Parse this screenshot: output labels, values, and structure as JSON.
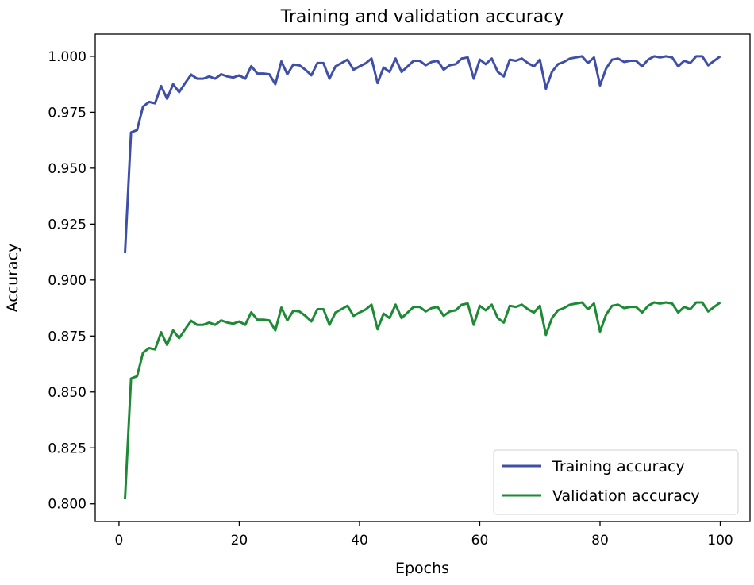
{
  "chart_data": {
    "type": "line",
    "title": "Training and validation accuracy",
    "xlabel": "Epochs",
    "ylabel": "Accuracy",
    "xlim": [
      -3.95,
      104.95
    ],
    "ylim": [
      0.7921,
      1.0099
    ],
    "xticks": [
      0,
      20,
      40,
      60,
      80,
      100
    ],
    "yticks": [
      "0.800",
      "0.825",
      "0.850",
      "0.875",
      "0.900",
      "0.925",
      "0.950",
      "0.975",
      "1.000"
    ],
    "grid": false,
    "legend_position": "lower-right",
    "x_start": 1,
    "series": [
      {
        "name": "Training accuracy",
        "color": "#3f4fa8",
        "values": [
          0.912,
          0.966,
          0.967,
          0.9775,
          0.9796,
          0.979,
          0.9867,
          0.981,
          0.9875,
          0.984,
          0.988,
          0.9918,
          0.99,
          0.99,
          0.991,
          0.99,
          0.992,
          0.991,
          0.9905,
          0.9915,
          0.99,
          0.9956,
          0.9923,
          0.9923,
          0.992,
          0.9875,
          0.9977,
          0.992,
          0.9963,
          0.996,
          0.994,
          0.9915,
          0.997,
          0.997,
          0.99,
          0.9955,
          0.997,
          0.9985,
          0.994,
          0.9955,
          0.9968,
          0.999,
          0.988,
          0.995,
          0.993,
          0.999,
          0.993,
          0.9955,
          0.998,
          0.998,
          0.996,
          0.9975,
          0.998,
          0.994,
          0.996,
          0.9965,
          0.999,
          0.9995,
          0.99,
          0.9985,
          0.9965,
          0.999,
          0.993,
          0.991,
          0.9985,
          0.998,
          0.999,
          0.997,
          0.9955,
          0.9985,
          0.9855,
          0.993,
          0.9965,
          0.9975,
          0.999,
          0.9995,
          1.0,
          0.997,
          0.9995,
          0.987,
          0.9945,
          0.9985,
          0.999,
          0.9975,
          0.998,
          0.998,
          0.9955,
          0.9985,
          1.0,
          0.9995,
          1.0,
          0.9995,
          0.9955,
          0.998,
          0.997,
          1.0,
          1.0,
          0.996,
          0.998,
          1.0
        ]
      },
      {
        "name": "Validation accuracy",
        "color": "#1e8a36",
        "values": [
          0.802,
          0.856,
          0.857,
          0.8675,
          0.8696,
          0.869,
          0.8767,
          0.871,
          0.8775,
          0.874,
          0.878,
          0.8818,
          0.88,
          0.88,
          0.881,
          0.88,
          0.882,
          0.881,
          0.8805,
          0.8815,
          0.88,
          0.8856,
          0.8823,
          0.8823,
          0.882,
          0.8775,
          0.8877,
          0.882,
          0.8863,
          0.886,
          0.884,
          0.8815,
          0.887,
          0.887,
          0.88,
          0.8855,
          0.887,
          0.8885,
          0.884,
          0.8855,
          0.8868,
          0.889,
          0.878,
          0.885,
          0.883,
          0.889,
          0.883,
          0.8855,
          0.888,
          0.888,
          0.886,
          0.8875,
          0.888,
          0.884,
          0.886,
          0.8865,
          0.889,
          0.8895,
          0.88,
          0.8885,
          0.8865,
          0.889,
          0.883,
          0.881,
          0.8885,
          0.888,
          0.889,
          0.887,
          0.8855,
          0.8885,
          0.8755,
          0.883,
          0.8865,
          0.8875,
          0.889,
          0.8895,
          0.89,
          0.887,
          0.8895,
          0.877,
          0.8845,
          0.8885,
          0.889,
          0.8875,
          0.888,
          0.888,
          0.8855,
          0.8885,
          0.89,
          0.8895,
          0.89,
          0.8895,
          0.8855,
          0.888,
          0.887,
          0.89,
          0.89,
          0.886,
          0.888,
          0.89
        ]
      }
    ]
  }
}
